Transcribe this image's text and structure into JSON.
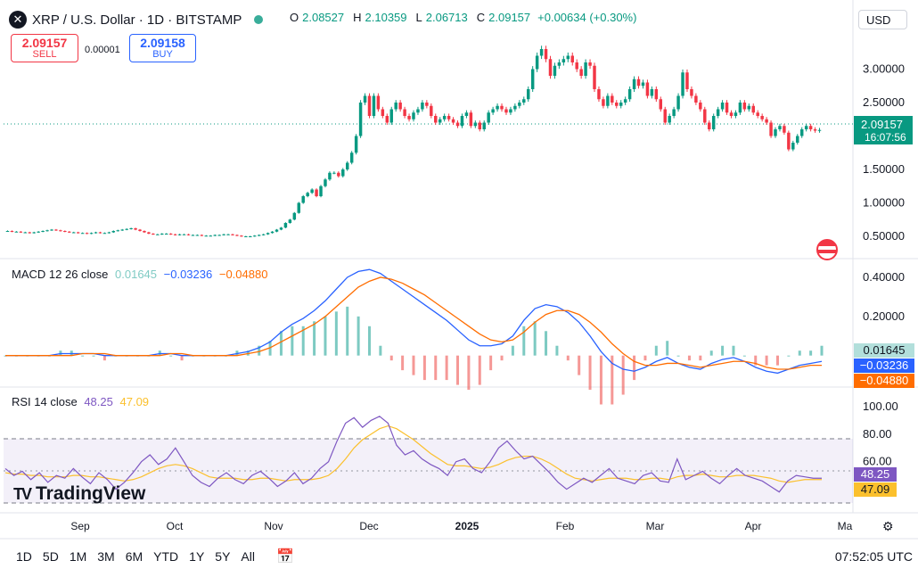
{
  "header": {
    "symbol_title": "XRP / U.S. Dollar · 1D · BITSTAMP",
    "ohlc": {
      "o_label": "O",
      "o_value": "2.08527",
      "h_label": "H",
      "h_value": "2.10359",
      "l_label": "L",
      "l_value": "2.06713",
      "c_label": "C",
      "c_value": "2.09157",
      "change": "+0.00634 (+0.30%)"
    },
    "sell": {
      "price": "2.09157",
      "label": "SELL"
    },
    "spread": "0.00001",
    "buy": {
      "price": "2.09158",
      "label": "BUY"
    },
    "currency": "USD",
    "watermark": "TradingView"
  },
  "chart_data": [
    {
      "type": "candlestick",
      "title": "XRP / U.S. Dollar · 1D · BITSTAMP",
      "y_ticks": [
        "3.00000",
        "2.50000",
        "1.50000",
        "1.00000",
        "0.50000"
      ],
      "ylim": [
        0.3,
        3.5
      ],
      "last_price": "2.09157",
      "countdown": "16:07:56",
      "x_ticks": [
        "Sep",
        "Oct",
        "Nov",
        "Dec",
        "2025",
        "Feb",
        "Mar",
        "Apr",
        "Ma"
      ],
      "series_close": [
        0.58,
        0.57,
        0.57,
        0.56,
        0.56,
        0.55,
        0.56,
        0.57,
        0.58,
        0.59,
        0.6,
        0.59,
        0.58,
        0.57,
        0.56,
        0.56,
        0.55,
        0.55,
        0.54,
        0.55,
        0.56,
        0.55,
        0.55,
        0.56,
        0.58,
        0.59,
        0.6,
        0.61,
        0.62,
        0.6,
        0.58,
        0.56,
        0.54,
        0.53,
        0.53,
        0.54,
        0.54,
        0.53,
        0.52,
        0.53,
        0.53,
        0.52,
        0.52,
        0.52,
        0.51,
        0.51,
        0.51,
        0.52,
        0.52,
        0.53,
        0.53,
        0.52,
        0.51,
        0.5,
        0.5,
        0.5,
        0.51,
        0.52,
        0.53,
        0.55,
        0.57,
        0.6,
        0.63,
        0.7,
        0.75,
        0.85,
        1.0,
        1.1,
        1.15,
        1.2,
        1.1,
        1.25,
        1.35,
        1.45,
        1.45,
        1.4,
        1.5,
        1.6,
        1.75,
        2.0,
        2.5,
        2.6,
        2.3,
        2.6,
        2.4,
        2.3,
        2.2,
        2.4,
        2.5,
        2.4,
        2.3,
        2.25,
        2.35,
        2.4,
        2.5,
        2.45,
        2.3,
        2.2,
        2.25,
        2.3,
        2.25,
        2.2,
        2.15,
        2.3,
        2.35,
        2.15,
        2.2,
        2.1,
        2.2,
        2.35,
        2.4,
        2.45,
        2.4,
        2.35,
        2.4,
        2.45,
        2.5,
        2.55,
        2.7,
        3.0,
        3.2,
        3.3,
        3.15,
        2.9,
        3.05,
        3.1,
        3.15,
        3.2,
        3.1,
        3.0,
        2.9,
        3.1,
        3.05,
        2.7,
        2.55,
        2.45,
        2.6,
        2.5,
        2.45,
        2.5,
        2.55,
        2.7,
        2.85,
        2.75,
        2.8,
        2.6,
        2.7,
        2.55,
        2.4,
        2.2,
        2.3,
        2.4,
        2.6,
        2.95,
        2.7,
        2.6,
        2.5,
        2.4,
        2.2,
        2.1,
        2.3,
        2.4,
        2.5,
        2.35,
        2.3,
        2.35,
        2.5,
        2.4,
        2.45,
        2.35,
        2.3,
        2.25,
        2.2,
        2.0,
        2.1,
        2.15,
        2.05,
        1.8,
        1.9,
        2.0,
        2.1,
        2.15,
        2.1,
        2.08,
        2.09
      ]
    },
    {
      "type": "line",
      "title": "MACD 12 26 close",
      "series": [
        {
          "name": "Histogram",
          "last": "0.01645",
          "color": "#b2dfdb"
        },
        {
          "name": "MACD",
          "last": "−0.03236",
          "color": "#2962ff"
        },
        {
          "name": "Signal",
          "last": "−0.04880",
          "color": "#ff6d00"
        }
      ],
      "y_ticks": [
        "0.40000",
        "0.20000"
      ],
      "ylim": [
        -0.12,
        0.45
      ],
      "macd": [
        0.0,
        0.0,
        0.0,
        0.0,
        0.0,
        0.01,
        0.01,
        0.01,
        0.01,
        0.0,
        0.0,
        0.0,
        0.0,
        0.0,
        0.01,
        0.01,
        0.0,
        0.0,
        0.0,
        0.0,
        0.0,
        0.01,
        0.02,
        0.04,
        0.07,
        0.12,
        0.16,
        0.19,
        0.23,
        0.28,
        0.34,
        0.4,
        0.43,
        0.44,
        0.42,
        0.38,
        0.34,
        0.3,
        0.26,
        0.22,
        0.18,
        0.13,
        0.08,
        0.05,
        0.05,
        0.06,
        0.1,
        0.18,
        0.24,
        0.26,
        0.25,
        0.22,
        0.17,
        0.1,
        0.02,
        -0.04,
        -0.07,
        -0.08,
        -0.06,
        -0.03,
        -0.01,
        -0.04,
        -0.06,
        -0.07,
        -0.04,
        -0.02,
        -0.01,
        -0.03,
        -0.06,
        -0.08,
        -0.09,
        -0.07,
        -0.05,
        -0.04,
        -0.03
      ],
      "signal": [
        0.0,
        0.0,
        0.0,
        0.0,
        0.0,
        0.0,
        0.0,
        0.01,
        0.01,
        0.01,
        0.0,
        0.0,
        0.0,
        0.0,
        0.0,
        0.01,
        0.01,
        0.0,
        0.0,
        0.0,
        0.0,
        0.0,
        0.01,
        0.02,
        0.04,
        0.07,
        0.1,
        0.13,
        0.16,
        0.2,
        0.25,
        0.3,
        0.35,
        0.38,
        0.4,
        0.39,
        0.37,
        0.34,
        0.31,
        0.27,
        0.23,
        0.19,
        0.15,
        0.11,
        0.08,
        0.07,
        0.08,
        0.12,
        0.17,
        0.21,
        0.23,
        0.23,
        0.21,
        0.17,
        0.12,
        0.06,
        0.01,
        -0.03,
        -0.05,
        -0.05,
        -0.04,
        -0.04,
        -0.05,
        -0.06,
        -0.05,
        -0.04,
        -0.03,
        -0.03,
        -0.04,
        -0.06,
        -0.07,
        -0.07,
        -0.06,
        -0.05,
        -0.05
      ]
    },
    {
      "type": "line",
      "title": "RSI 14 close",
      "series": [
        {
          "name": "RSI",
          "last": "48.25",
          "color": "#7e57c2"
        },
        {
          "name": "MA",
          "last": "47.09",
          "color": "#fbc02d"
        }
      ],
      "y_ticks": [
        "100.00",
        "80.00",
        "60.00"
      ],
      "ylim": [
        30,
        100
      ],
      "band": [
        30,
        70
      ],
      "midline": 50,
      "rsi": [
        55,
        50,
        53,
        47,
        52,
        45,
        50,
        48,
        55,
        49,
        44,
        52,
        47,
        40,
        45,
        52,
        60,
        65,
        58,
        62,
        70,
        60,
        50,
        45,
        42,
        48,
        52,
        47,
        44,
        50,
        53,
        48,
        42,
        46,
        52,
        44,
        48,
        55,
        60,
        75,
        88,
        92,
        85,
        90,
        93,
        88,
        72,
        65,
        68,
        62,
        58,
        55,
        50,
        60,
        62,
        55,
        52,
        60,
        70,
        75,
        68,
        62,
        64,
        58,
        52,
        45,
        40,
        44,
        48,
        45,
        50,
        55,
        48,
        46,
        44,
        50,
        52,
        46,
        45,
        62,
        47,
        50,
        53,
        48,
        44,
        50,
        55,
        50,
        48,
        46,
        42,
        38,
        46,
        50,
        49,
        48,
        48
      ],
      "rsi_ma": [
        52,
        51,
        51,
        50,
        50,
        49,
        49,
        49,
        50,
        50,
        49,
        49,
        48,
        47,
        46,
        47,
        49,
        52,
        55,
        57,
        58,
        57,
        55,
        52,
        49,
        48,
        48,
        48,
        47,
        47,
        48,
        48,
        47,
        46,
        47,
        47,
        47,
        48,
        50,
        55,
        62,
        70,
        76,
        80,
        84,
        86,
        84,
        80,
        76,
        71,
        66,
        62,
        58,
        57,
        57,
        56,
        55,
        56,
        58,
        61,
        63,
        64,
        64,
        62,
        59,
        55,
        51,
        48,
        47,
        46,
        47,
        48,
        48,
        48,
        47,
        47,
        48,
        48,
        47,
        49,
        50,
        50,
        51,
        50,
        49,
        49,
        50,
        50,
        50,
        49,
        48,
        46,
        45,
        46,
        47,
        47,
        47
      ]
    }
  ],
  "timeframes": [
    "1D",
    "5D",
    "1M",
    "3M",
    "6M",
    "YTD",
    "1Y",
    "5Y",
    "All"
  ],
  "footer": {
    "time": "07:52:05 UTC"
  },
  "colors": {
    "up": "#089981",
    "down": "#f23645",
    "accent": "#2962ff"
  }
}
